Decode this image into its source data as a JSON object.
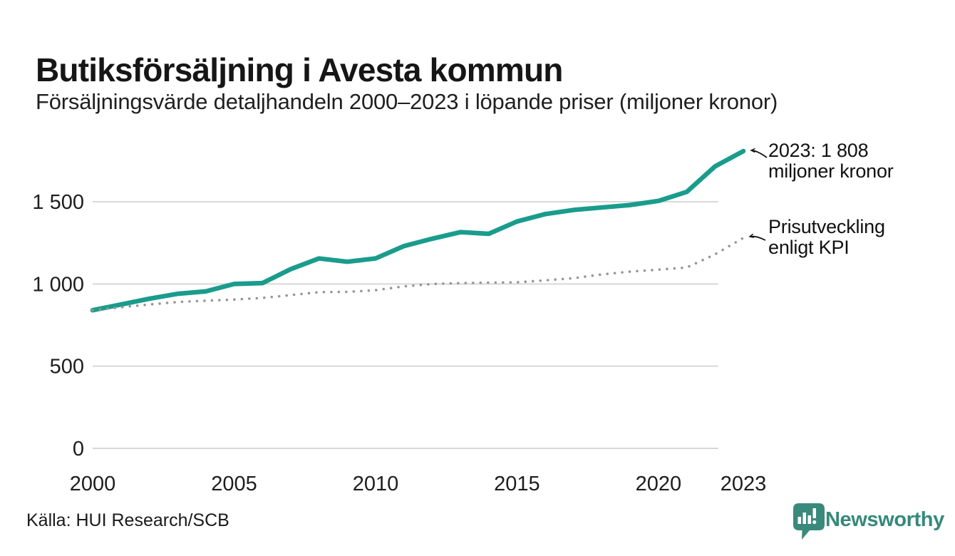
{
  "colors": {
    "accent_teal": "#1a9c8c",
    "brand_teal": "#35897b",
    "grid_gray": "#d8d8d8",
    "dotted_gray": "#969696",
    "text_dark": "#1d1d1d"
  },
  "chart_data": {
    "type": "line",
    "title": "Butiksförsäljning i Avesta kommun",
    "subtitle": "Försäljningsvärde detaljhandeln 2000–2023 i löpande priser (miljoner kronor)",
    "unit": "miljoner kronor",
    "grid": "horizontal",
    "legend": "none",
    "ylim": [
      0,
      1900
    ],
    "x": [
      2000,
      2001,
      2002,
      2003,
      2004,
      2005,
      2006,
      2007,
      2008,
      2009,
      2010,
      2011,
      2012,
      2013,
      2014,
      2015,
      2016,
      2017,
      2018,
      2019,
      2020,
      2021,
      2022,
      2023
    ],
    "series": [
      {
        "name": "Butiksförsäljning i löpande priser",
        "style": "solid",
        "color": "#1a9c8c",
        "values": [
          840,
          875,
          910,
          940,
          955,
          1000,
          1005,
          1090,
          1155,
          1135,
          1155,
          1230,
          1275,
          1315,
          1305,
          1380,
          1425,
          1450,
          1465,
          1480,
          1505,
          1560,
          1715,
          1808
        ]
      },
      {
        "name": "Prisutveckling enligt KPI",
        "style": "dotted",
        "color": "#969696",
        "values": [
          840,
          858,
          875,
          890,
          898,
          905,
          915,
          932,
          950,
          952,
          962,
          985,
          1000,
          1005,
          1008,
          1010,
          1022,
          1035,
          1058,
          1075,
          1087,
          1100,
          1180,
          1280
        ]
      }
    ],
    "xticks": {
      "values": [
        2000,
        2005,
        2010,
        2015,
        2020,
        2023
      ],
      "labels": [
        "2000",
        "2005",
        "2010",
        "2015",
        "2020",
        "2023"
      ]
    },
    "yticks": {
      "values": [
        0,
        500,
        1000,
        1500
      ],
      "labels": [
        "0",
        "500",
        "1 000",
        "1 500"
      ]
    },
    "annotations": [
      {
        "text_line1": "2023: 1 808",
        "text_line2": "miljoner kronor",
        "target_series": 0,
        "target_year": 2023
      },
      {
        "text_line1": "Prisutveckling",
        "text_line2": "enligt KPI",
        "target_series": 1,
        "target_year": 2023
      }
    ]
  },
  "footer": {
    "source": "Källa: HUI Research/SCB",
    "brand_name": "Newsworthy"
  }
}
